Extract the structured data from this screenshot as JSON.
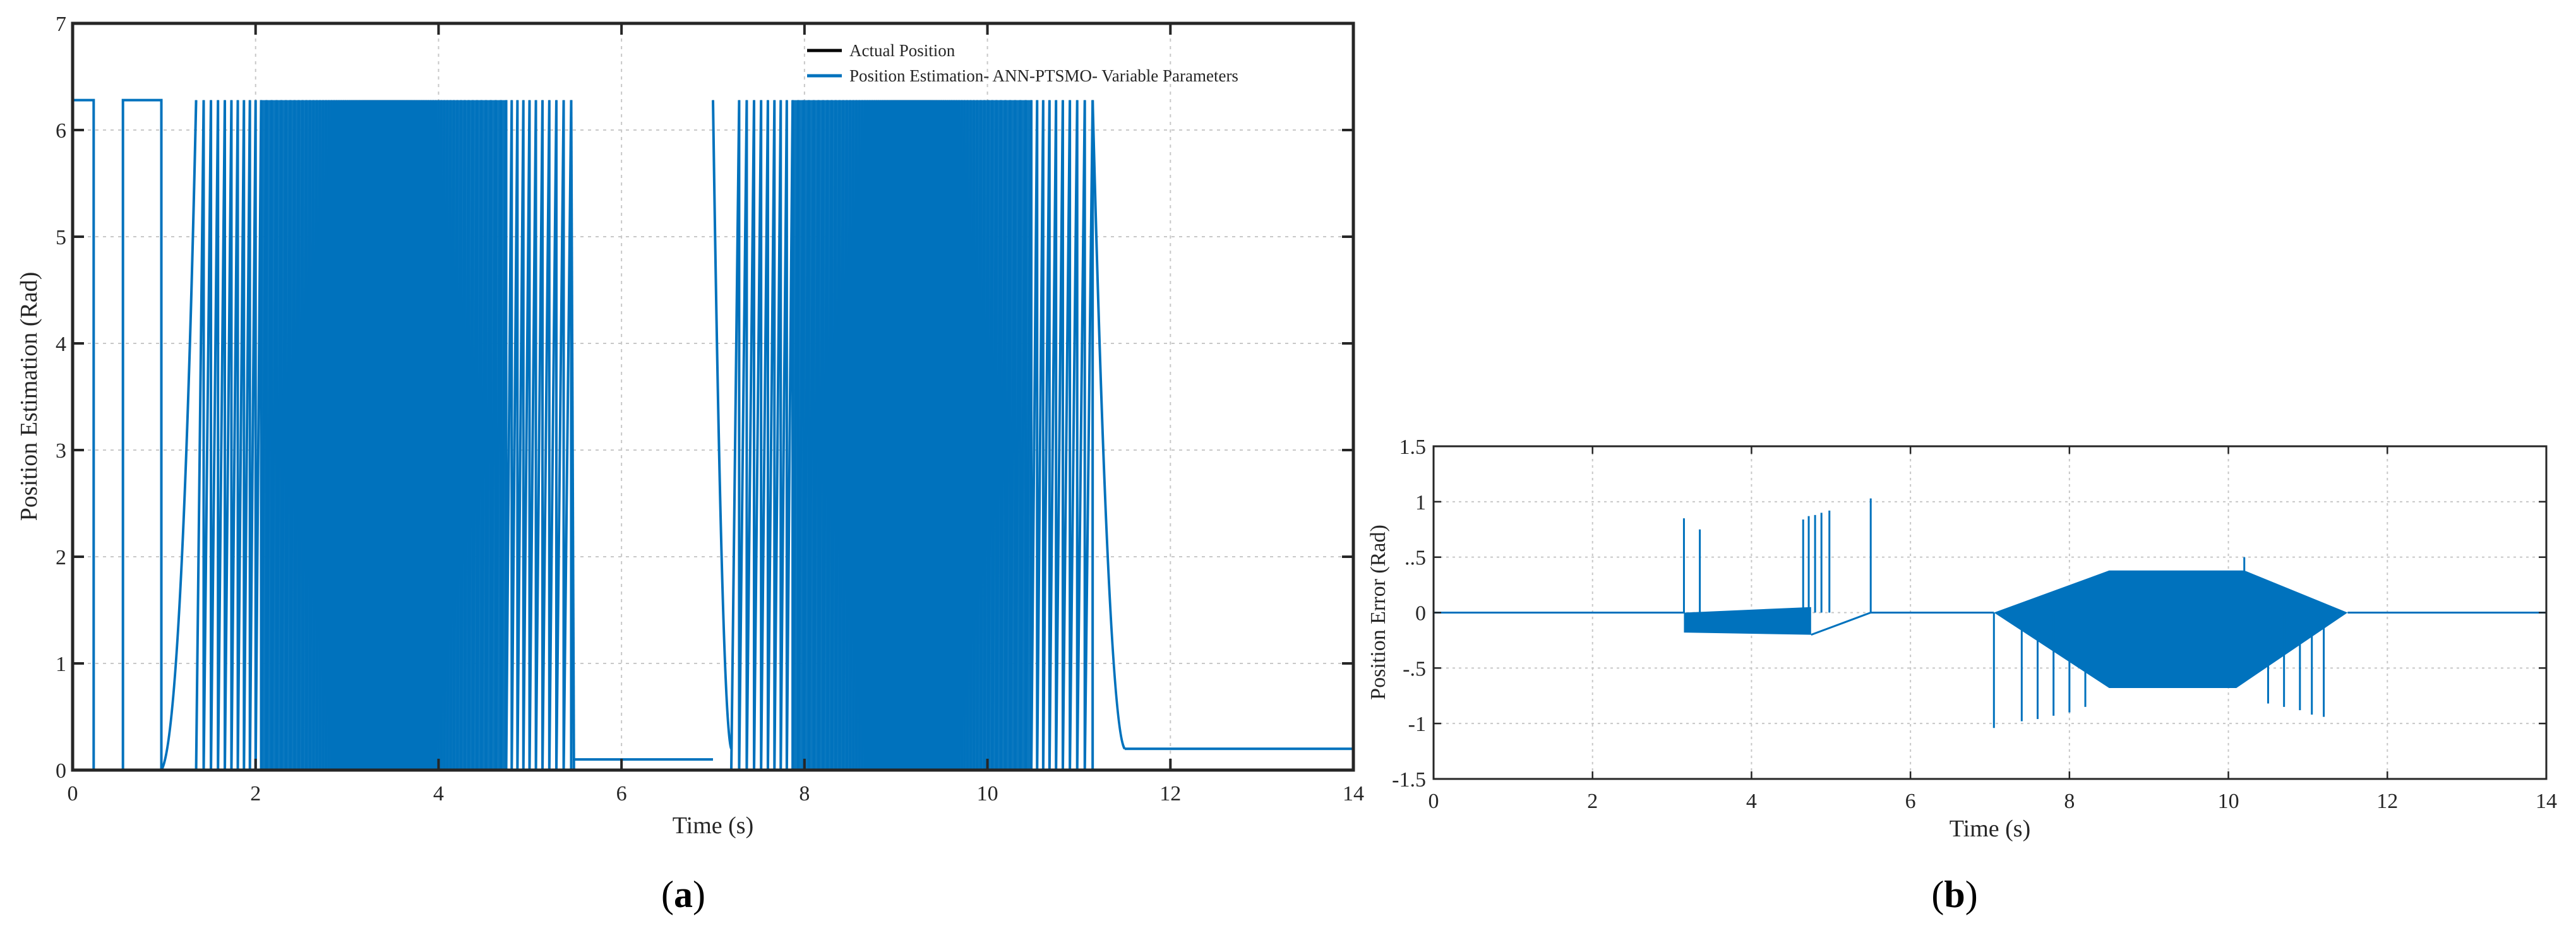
{
  "chart_data": [
    {
      "id": "a",
      "type": "line",
      "panel_label": "a",
      "xlabel": "Time (s)",
      "ylabel": "Position Estimation (Rad)",
      "xlim": [
        0,
        14
      ],
      "ylim": [
        0,
        7
      ],
      "xticks": [
        0,
        2,
        4,
        6,
        8,
        10,
        12,
        14
      ],
      "yticks": [
        0,
        1,
        2,
        3,
        4,
        5,
        6,
        7
      ],
      "grid": true,
      "legend_position": "top-right",
      "wrap_max": 6.28,
      "series": [
        {
          "name": "Actual Position",
          "color": "#000000"
        },
        {
          "name": "Position Estimation- ANN-PTSMO- Variable Parameters",
          "color": "#0072bd"
        }
      ],
      "segments": [
        {
          "kind": "pulse",
          "t": [
            0.0,
            0.23
          ]
        },
        {
          "kind": "pulse",
          "t": [
            0.55,
            0.97
          ]
        },
        {
          "kind": "ramp_up",
          "t": [
            0.97,
            1.35
          ]
        },
        {
          "kind": "sawtooth_dense",
          "t": [
            1.35,
            5.45
          ],
          "count": 130
        },
        {
          "kind": "ramp_down",
          "t": [
            5.45,
            5.48
          ]
        },
        {
          "kind": "hold",
          "t": [
            5.48,
            7.0
          ],
          "value": 0.1
        },
        {
          "kind": "decay",
          "t": [
            7.0,
            7.2
          ]
        },
        {
          "kind": "sawtooth_dense",
          "t": [
            7.2,
            11.15
          ],
          "count": 120
        },
        {
          "kind": "decay",
          "t": [
            11.15,
            11.5
          ]
        },
        {
          "kind": "hold",
          "t": [
            11.5,
            14.0
          ],
          "value": 0.2
        }
      ]
    },
    {
      "id": "b",
      "type": "line",
      "panel_label": "b",
      "xlabel": "Time (s)",
      "ylabel": "Position Error (Rad)",
      "xlim": [
        0,
        14
      ],
      "ylim": [
        -1.5,
        1.5
      ],
      "xticks": [
        0,
        2,
        4,
        6,
        8,
        10,
        12,
        14
      ],
      "yticks": [
        -1.5,
        -1,
        -0.5,
        0,
        0.5,
        1,
        1.5
      ],
      "grid": true,
      "series": [
        {
          "name": "",
          "color": "#0072bd"
        }
      ],
      "baseline": [
        [
          0,
          0
        ],
        [
          3.15,
          0
        ]
      ],
      "band_1": {
        "t": [
          3.15,
          4.75
        ],
        "upper": [
          0.0,
          0.05
        ],
        "lower": [
          -0.18,
          -0.2
        ]
      },
      "band_1_return": [
        [
          4.75,
          -0.2
        ],
        [
          5.5,
          0.0
        ],
        [
          7.05,
          0.0
        ]
      ],
      "spikes_1": [
        [
          3.15,
          0.85
        ],
        [
          3.35,
          0.75
        ],
        [
          4.65,
          0.84
        ],
        [
          4.72,
          0.87
        ],
        [
          4.8,
          0.88
        ],
        [
          4.88,
          0.9
        ],
        [
          4.98,
          0.92
        ],
        [
          5.5,
          1.03
        ]
      ],
      "band_2": {
        "t": [
          7.05,
          11.5
        ],
        "upper": [
          [
            7.05,
            0.0
          ],
          [
            8.5,
            0.38
          ],
          [
            10.2,
            0.38
          ],
          [
            11.5,
            0.0
          ]
        ],
        "lower": [
          [
            7.05,
            0.0
          ],
          [
            8.5,
            -0.68
          ],
          [
            10.1,
            -0.68
          ],
          [
            11.5,
            0.0
          ]
        ]
      },
      "spikes_2": [
        [
          7.05,
          -1.04
        ],
        [
          7.4,
          -0.98
        ],
        [
          7.6,
          -0.96
        ],
        [
          7.8,
          -0.93
        ],
        [
          8.0,
          -0.9
        ],
        [
          8.2,
          -0.85
        ],
        [
          10.2,
          0.5
        ],
        [
          10.5,
          -0.82
        ],
        [
          10.7,
          -0.85
        ],
        [
          10.9,
          -0.88
        ],
        [
          11.05,
          -0.92
        ],
        [
          11.2,
          -0.94
        ]
      ],
      "tail": [
        [
          11.5,
          0.0
        ],
        [
          14.0,
          0.0
        ]
      ]
    }
  ]
}
